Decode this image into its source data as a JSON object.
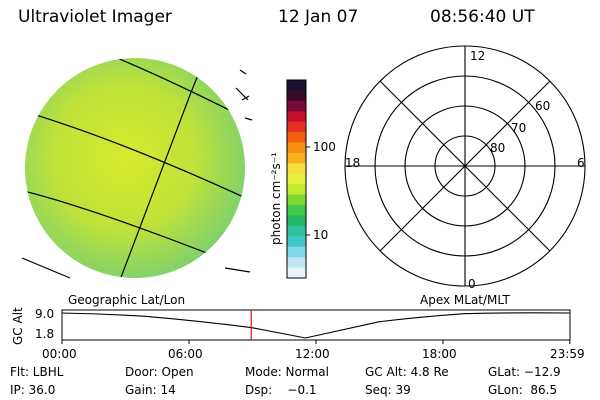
{
  "header": {
    "instrument": "Ultraviolet Imager",
    "date": "12 Jan 07",
    "time": "08:56:40 UT"
  },
  "colorbar": {
    "unit_label": "photon cm⁻²s⁻¹",
    "tick_labels": [
      "100",
      "10"
    ],
    "colors": [
      "#1a1030",
      "#3a0a2a",
      "#7a0a3a",
      "#c0102a",
      "#e83020",
      "#f06010",
      "#f59010",
      "#f5b020",
      "#f5e040",
      "#e8f040",
      "#c0ec30",
      "#80d830",
      "#40c848",
      "#20b868",
      "#30c0a0",
      "#40c8c8",
      "#80d8e8",
      "#c0e8f0",
      "#e8f4f8"
    ]
  },
  "left_panel": {
    "label": "Geographic Lat/Lon",
    "colors": {
      "disk_base": "#b8e234",
      "disk_edge": "#7fcf6a"
    }
  },
  "right_panel": {
    "label": "Apex MLat/MLT",
    "mlt_labels": {
      "top": "12",
      "left": "18",
      "right": "6",
      "bottom": "0"
    },
    "mlat_labels": [
      "60",
      "70",
      "80"
    ]
  },
  "timeline": {
    "y_axis_label": "GC Alt",
    "y_ticks": [
      "9.0",
      "1.8"
    ],
    "x_ticks": [
      "00:00",
      "06:00",
      "12:00",
      "18:00",
      "23:59"
    ],
    "current_time_hours": 8.94,
    "curve_points": [
      {
        "t": 0.0,
        "alt": 9.0
      },
      {
        "t": 4.0,
        "alt": 8.0
      },
      {
        "t": 8.94,
        "alt": 4.8
      },
      {
        "t": 11.5,
        "alt": 1.8
      },
      {
        "t": 15.0,
        "alt": 6.5
      },
      {
        "t": 19.0,
        "alt": 8.8
      },
      {
        "t": 23.99,
        "alt": 9.0
      }
    ],
    "marker_color": "#e02020"
  },
  "info": {
    "flt": "Flt: LBHL",
    "door": "Door: Open",
    "mode": "Mode: Normal",
    "gc_alt": "GC Alt: 4.8 Re",
    "glat": "GLat: −12.9",
    "ip": "IP: 36.0",
    "gain": "Gain: 14",
    "dsp": "Dsp:    −0.1",
    "seq": "Seq: 39",
    "glon": "GLon:  86.5"
  }
}
